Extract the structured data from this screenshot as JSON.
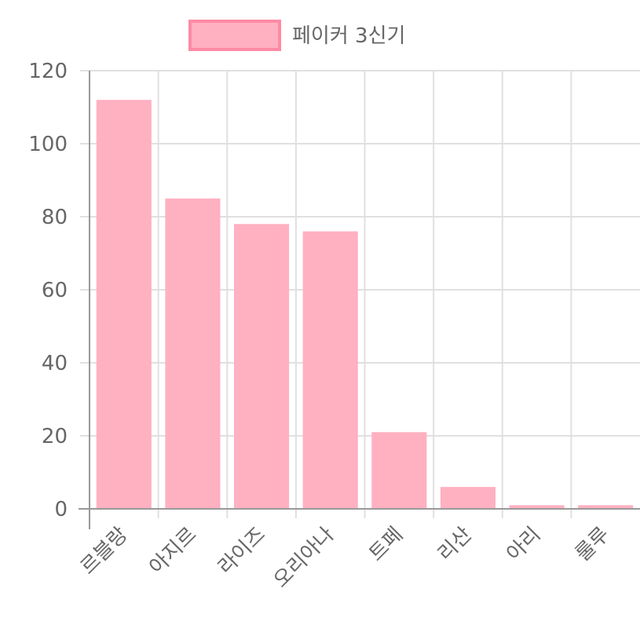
{
  "chart_data": {
    "type": "bar",
    "categories": [
      "르블랑",
      "아지르",
      "라이즈",
      "오리아나",
      "트페",
      "리산",
      "아리",
      "룰루"
    ],
    "series": [
      {
        "name": "페이커 3신기",
        "values": [
          112,
          85,
          78,
          76,
          21,
          6,
          1,
          1
        ]
      }
    ],
    "ylim": [
      0,
      120
    ],
    "yticks": [
      0,
      20,
      40,
      60,
      80,
      100,
      120
    ],
    "grid": true,
    "legend_position": "top",
    "colors": {
      "bar_fill": "#ffb0c1",
      "bar_border": "#ff8aa5",
      "grid": "#e0e0e0",
      "axis": "#999999",
      "text": "#666666"
    }
  }
}
